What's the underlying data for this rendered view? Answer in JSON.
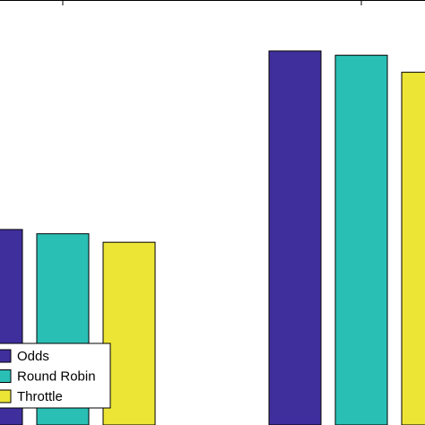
{
  "chart_data": {
    "type": "bar",
    "categories": [
      null,
      null
    ],
    "series": [
      {
        "name": "Odds",
        "color": "#3f2f9c",
        "values": [
          0.46,
          0.88
        ]
      },
      {
        "name": "Round Robin",
        "color": "#2abfb5",
        "values": [
          0.45,
          0.87
        ]
      },
      {
        "name": "Throttle",
        "color": "#ede536",
        "values": [
          0.43,
          0.83
        ]
      }
    ],
    "ylim": [
      0,
      1
    ]
  }
}
